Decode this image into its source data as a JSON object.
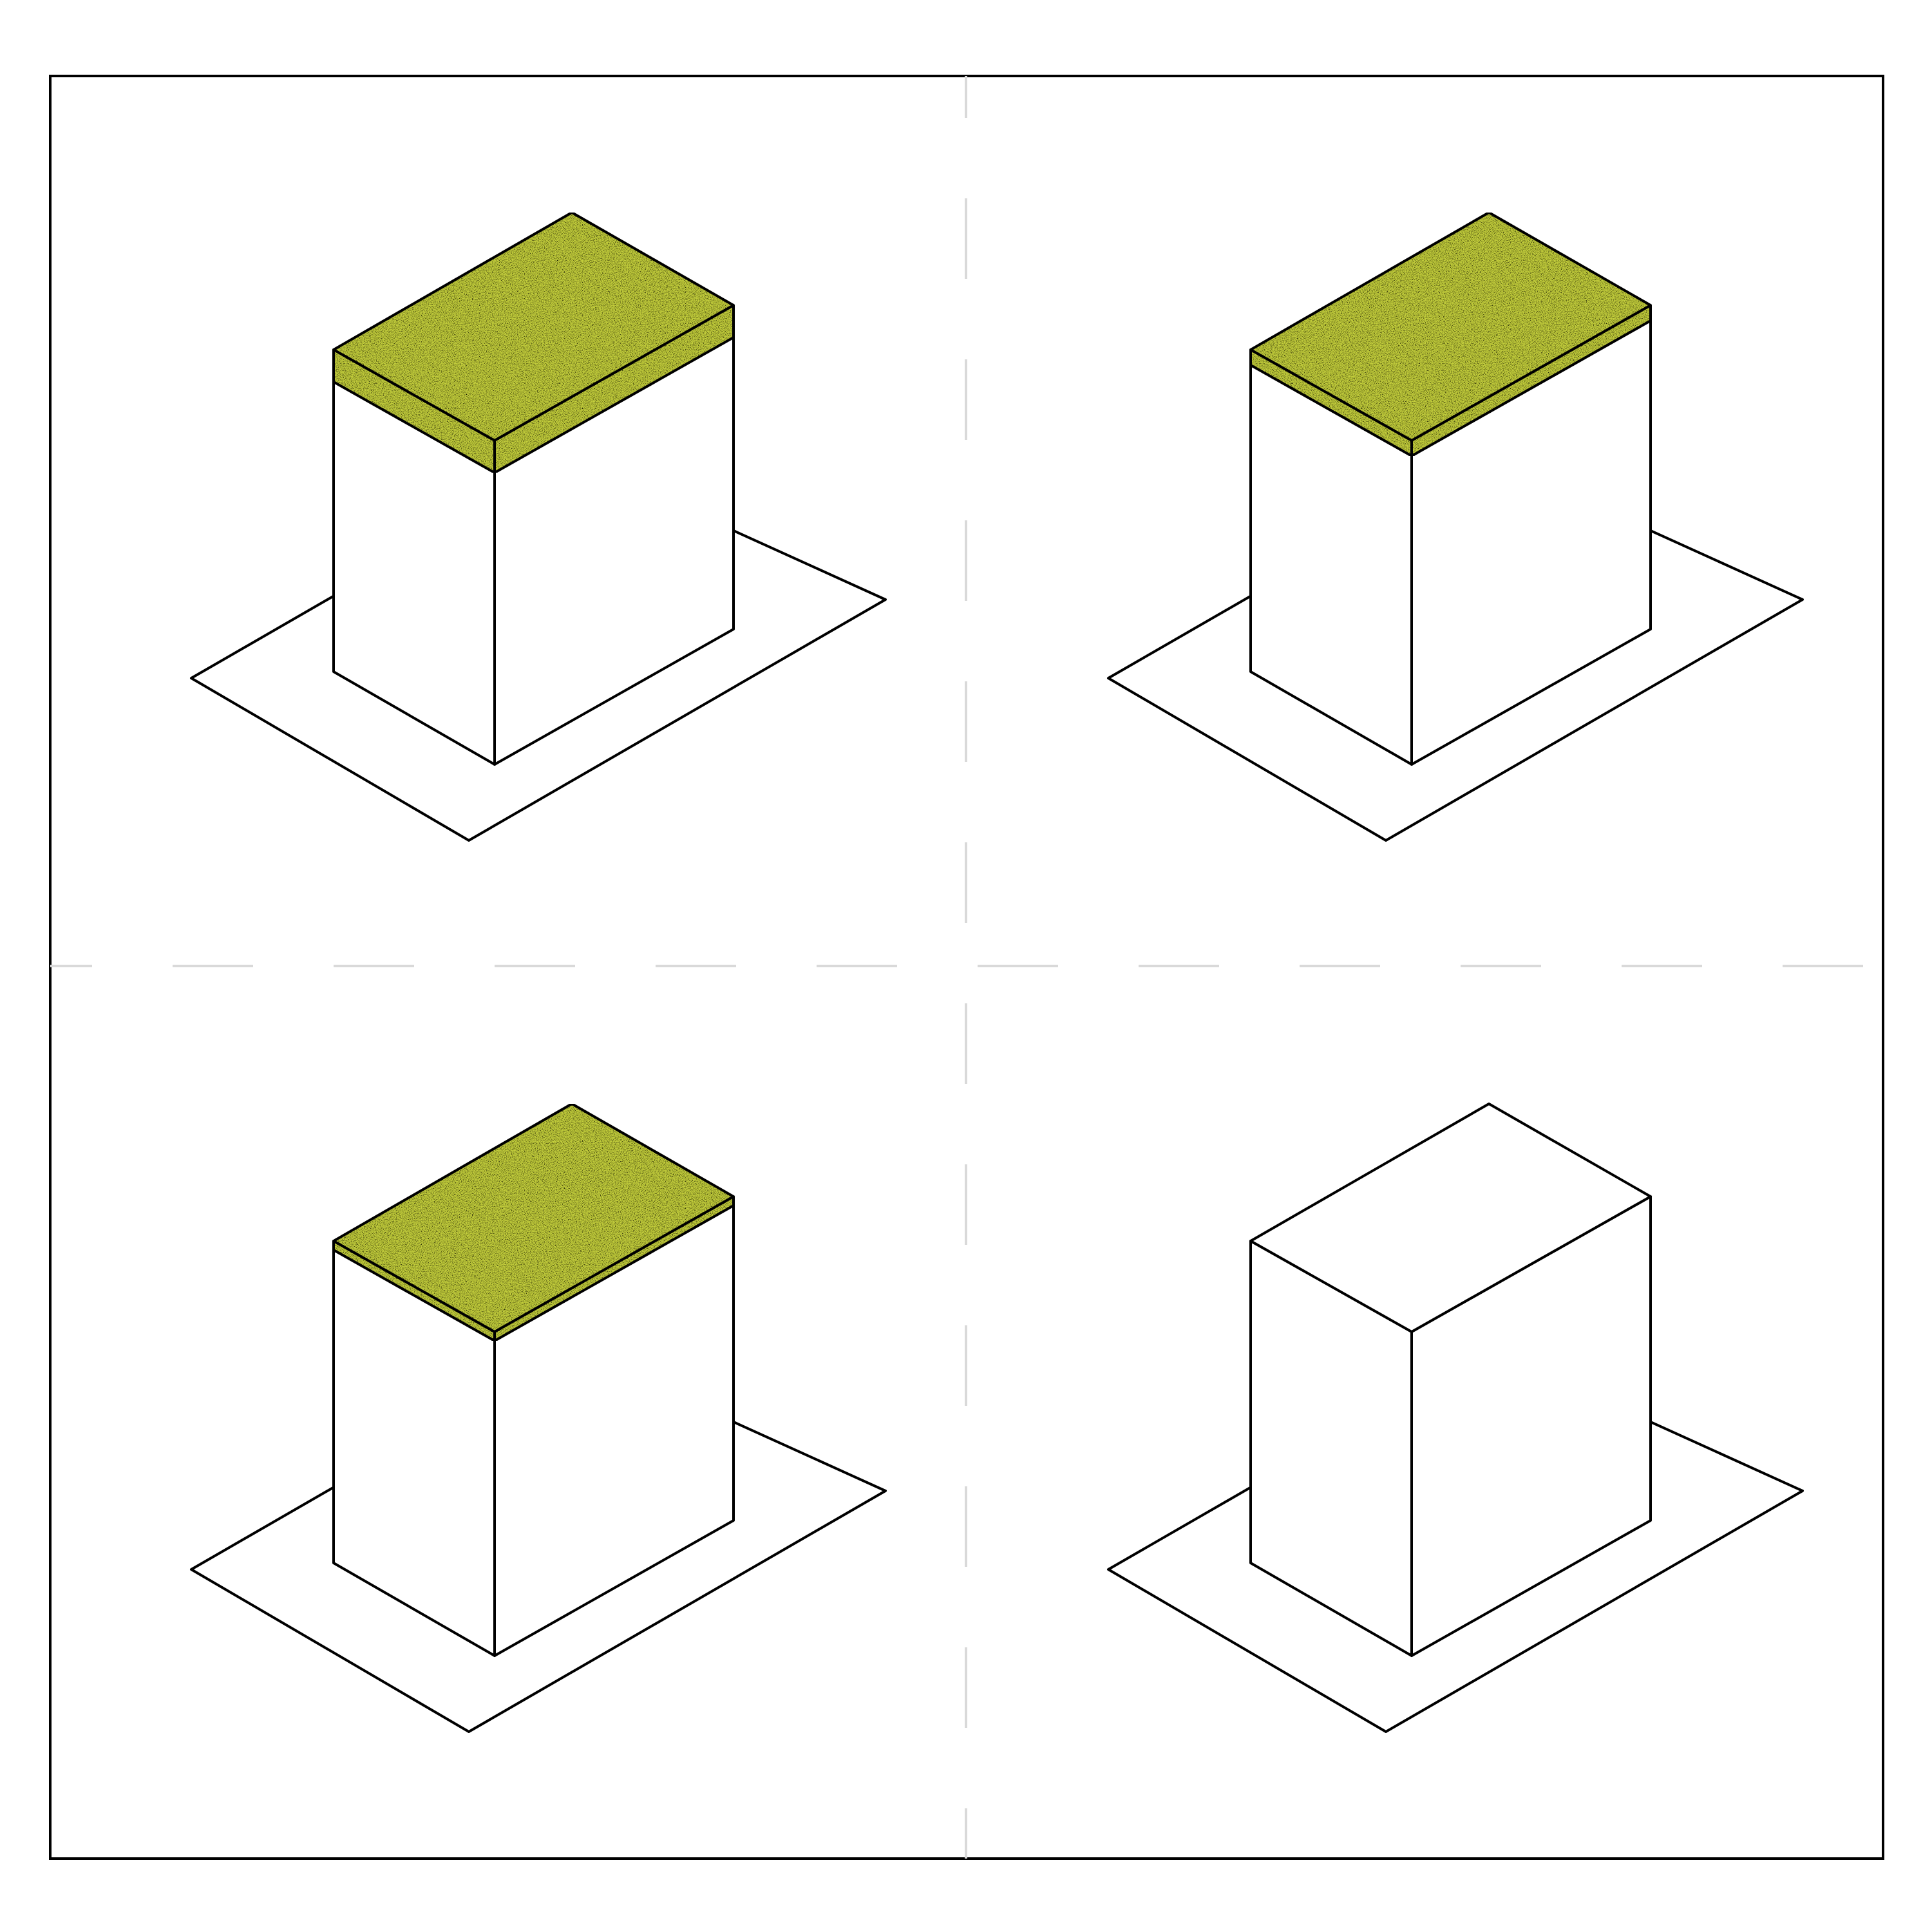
{
  "colors": {
    "background": "#ffffff",
    "stroke": "#000000",
    "roof_fill": "#c4cf3c",
    "roof_fill_light": "#dfe77a",
    "roof_fill_dark": "#7f8a1a",
    "divider": "#d9d9d9"
  },
  "panels": [
    {
      "id": "top-left",
      "roof": "green-roof",
      "roof_thickness": "thick"
    },
    {
      "id": "top-right",
      "roof": "green-roof",
      "roof_thickness": "medium"
    },
    {
      "id": "bottom-left",
      "roof": "green-roof",
      "roof_thickness": "thin"
    },
    {
      "id": "bottom-right",
      "roof": "none",
      "roof_thickness": "none"
    }
  ]
}
